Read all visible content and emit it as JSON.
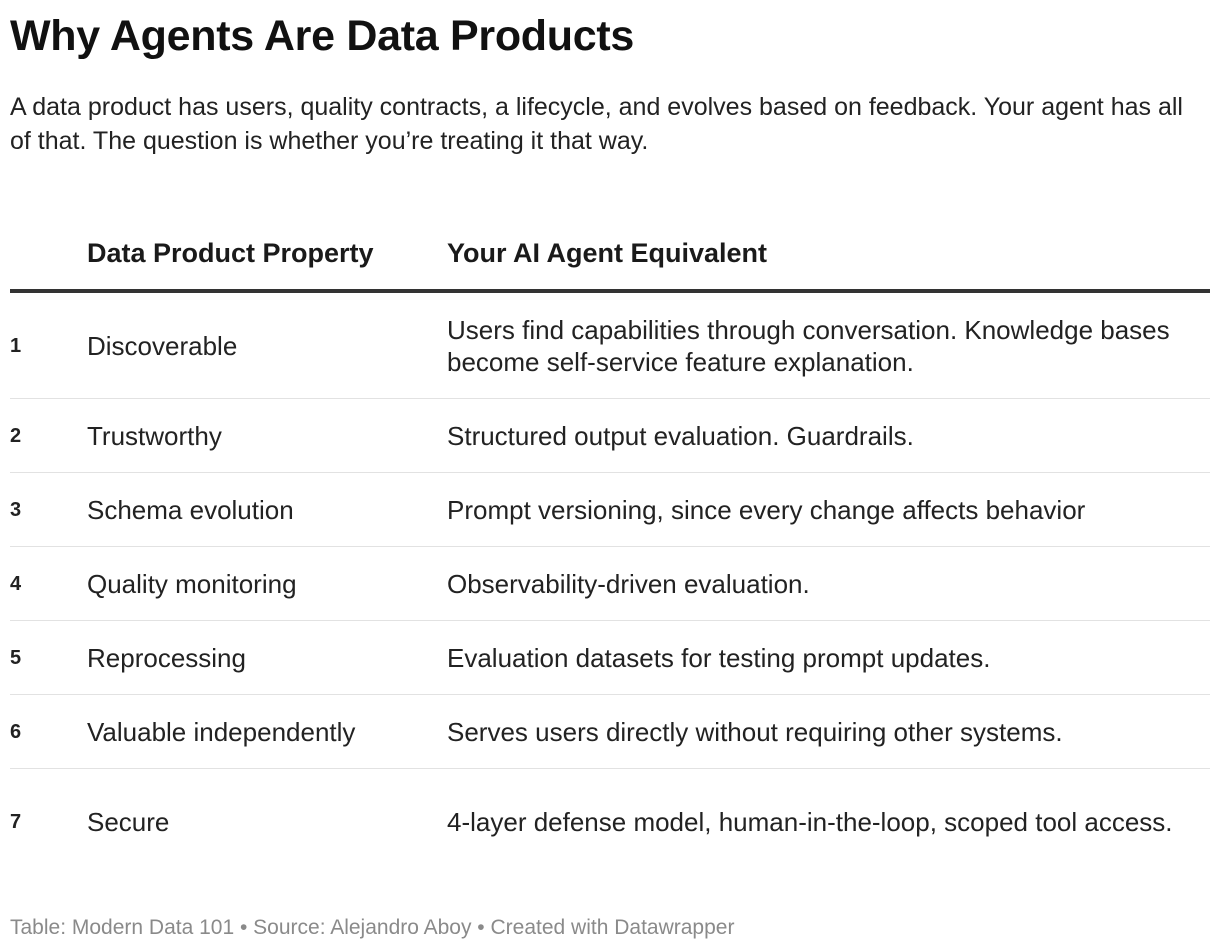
{
  "title": "Why Agents Are Data Products",
  "subtitle": "A data product has users, quality contracts, a lifecycle, and evolves based on feedback. Your agent has all of that. The question is whether you’re treating it that way.",
  "table": {
    "headers": {
      "number": "",
      "property": "Data Product Property",
      "equivalent": "Your AI Agent Equivalent"
    },
    "rows": [
      {
        "number": "1",
        "property": "Discoverable",
        "equivalent": "Users find capabilities through conversation. Knowledge bases become self-service feature explanation."
      },
      {
        "number": "2",
        "property": "Trustworthy",
        "equivalent": "Structured output evaluation. Guardrails."
      },
      {
        "number": "3",
        "property": "Schema evolution",
        "equivalent": "Prompt versioning, since every change affects behavior"
      },
      {
        "number": "4",
        "property": "Quality monitoring",
        "equivalent": "Observability-driven evaluation."
      },
      {
        "number": "5",
        "property": "Reprocessing",
        "equivalent": "Evaluation datasets for testing prompt updates."
      },
      {
        "number": "6",
        "property": "Valuable independently",
        "equivalent": "Serves users directly without requiring other systems."
      },
      {
        "number": "7",
        "property": "Secure",
        "equivalent": "4-layer defense model, human-in-the-loop, scoped tool access."
      }
    ]
  },
  "footer": "Table: Modern Data 101 • Source: Alejandro Aboy • Created with Datawrapper"
}
